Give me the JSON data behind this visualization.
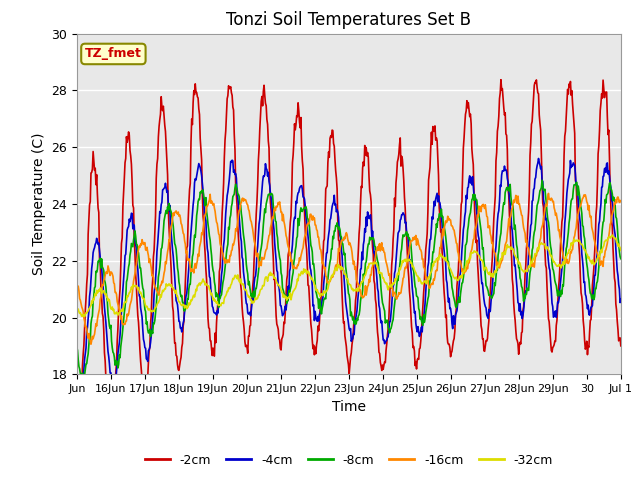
{
  "title": "Tonzi Soil Temperatures Set B",
  "xlabel": "Time",
  "ylabel": "Soil Temperature (C)",
  "ylim": [
    18,
    30
  ],
  "background_color": "#e8e8e8",
  "grid_color": "#ffffff",
  "x_tick_labels": [
    "Jun",
    "16Jun",
    "17Jun",
    "18Jun",
    "19Jun",
    "20Jun",
    "21Jun",
    "22Jun",
    "23Jun",
    "24Jun",
    "25Jun",
    "26Jun",
    "27Jun",
    "28Jun",
    "29Jun",
    "30",
    "Jul 1"
  ],
  "legend_labels": [
    "-2cm",
    "-4cm",
    "-8cm",
    "-16cm",
    "-32cm"
  ],
  "legend_colors": [
    "#cc0000",
    "#0000cc",
    "#00aa00",
    "#ff8800",
    "#dddd00"
  ],
  "annotation_text": "TZ_fmet",
  "annotation_color": "#cc0000",
  "annotation_bg": "#ffffcc",
  "annotation_border": "#888800"
}
